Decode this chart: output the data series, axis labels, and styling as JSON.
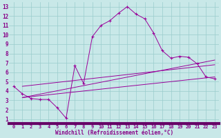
{
  "xlabel": "Windchill (Refroidissement éolien,°C)",
  "bg_color": "#c8e8e8",
  "grid_color": "#99cccc",
  "line_color": "#990099",
  "axis_bar_color": "#660066",
  "tick_label_color": "#880088",
  "xlim": [
    -0.5,
    23.5
  ],
  "ylim": [
    0.5,
    13.5
  ],
  "xticks": [
    0,
    1,
    2,
    3,
    4,
    5,
    6,
    7,
    8,
    9,
    10,
    11,
    12,
    13,
    14,
    15,
    16,
    17,
    18,
    19,
    20,
    21,
    22,
    23
  ],
  "yticks": [
    1,
    2,
    3,
    4,
    5,
    6,
    7,
    8,
    9,
    10,
    11,
    12,
    13
  ],
  "line1_x": [
    0,
    1,
    2,
    3,
    4,
    5,
    6,
    7,
    8,
    9,
    10,
    11,
    12,
    13,
    14,
    15,
    16,
    17,
    18,
    19,
    20,
    21,
    22,
    23
  ],
  "line1_y": [
    4.5,
    3.7,
    3.2,
    3.1,
    3.1,
    2.2,
    1.1,
    6.7,
    4.8,
    9.8,
    11.0,
    11.5,
    12.3,
    13.0,
    12.2,
    11.7,
    10.2,
    8.3,
    7.5,
    7.7,
    7.6,
    6.9,
    5.5,
    5.3
  ],
  "line2_x": [
    1,
    23
  ],
  "line2_y": [
    3.3,
    5.5
  ],
  "line3_x": [
    1,
    23
  ],
  "line3_y": [
    3.3,
    7.3
  ],
  "line4_x": [
    1,
    23
  ],
  "line4_y": [
    4.5,
    6.8
  ]
}
